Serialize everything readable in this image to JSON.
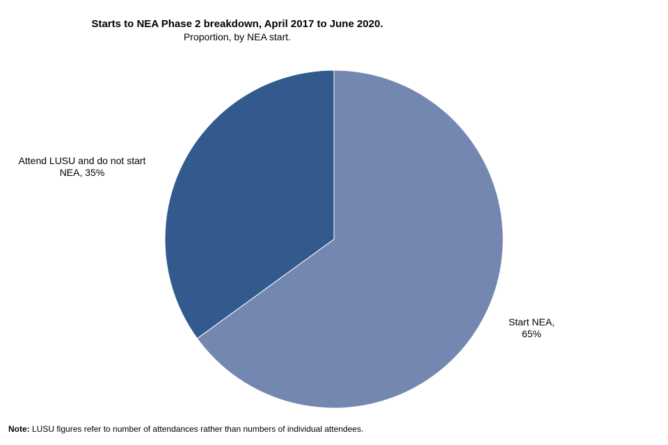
{
  "chart_data": {
    "type": "pie",
    "title": "Starts to NEA Phase 2 breakdown, April 2017 to June 2020.",
    "subtitle": "Proportion, by NEA start.",
    "slices": [
      {
        "label": "Start NEA,",
        "value_label": "65%",
        "value": 65,
        "color": "#7387b0"
      },
      {
        "label": "Attend LUSU and do not start NEA,",
        "value_label": "35%",
        "value": 35,
        "color": "#335a8d"
      }
    ],
    "start_angle_deg": 0,
    "direction": "clockwise",
    "separator_color": "#ffffff"
  },
  "note": {
    "prefix": "Note:",
    "text": " LUSU figures refer to number of attendances rather than numbers of individual  attendees."
  }
}
